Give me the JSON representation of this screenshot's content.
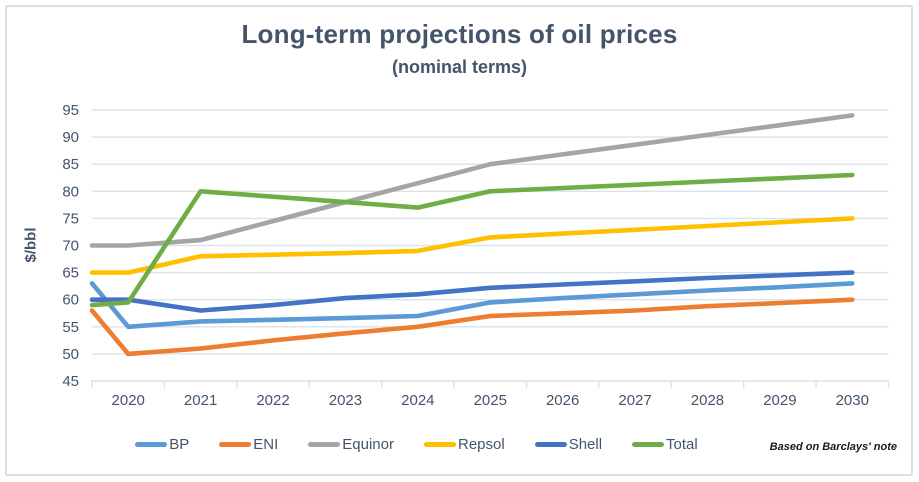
{
  "card": {
    "title": "Long-term projections of oil prices",
    "subtitle": "(nominal terms)",
    "attribution": "Based on Barclays' note"
  },
  "colors": {
    "title_text": "#44546A",
    "axis_text": "#44546A",
    "gridline": "#DCE2EC",
    "frame_border": "#D9DEE8",
    "legend_text": "#44546A"
  },
  "chart_data": {
    "type": "line",
    "title": "Long-term projections of oil prices",
    "subtitle": "(nominal terms)",
    "xlabel": "",
    "ylabel": "$/bbl",
    "ylim": [
      45,
      95
    ],
    "yticks": [
      45,
      50,
      55,
      60,
      65,
      70,
      75,
      80,
      85,
      90,
      95
    ],
    "grid": true,
    "legend_position": "bottom",
    "x": [
      2019,
      2020,
      2021,
      2022,
      2023,
      2024,
      2025,
      2026,
      2027,
      2028,
      2029,
      2030
    ],
    "x_labels_visible": [
      "2020",
      "2021",
      "2022",
      "2023",
      "2024",
      "2025",
      "2026",
      "2027",
      "2028",
      "2029",
      "2030"
    ],
    "layout_note": "first data point (2019) sits at the unlabeled left edge of the axis",
    "series": [
      {
        "name": "BP",
        "color": "#5B9BD5",
        "values": [
          63,
          55,
          56,
          56.3,
          56.6,
          57,
          59.5,
          60.3,
          61,
          61.7,
          62.3,
          63
        ]
      },
      {
        "name": "ENI",
        "color": "#ED7D31",
        "values": [
          58,
          50,
          51,
          52.5,
          53.8,
          55,
          57,
          57.5,
          58,
          58.8,
          59.4,
          60
        ]
      },
      {
        "name": "Equinor",
        "color": "#A5A5A5",
        "values": [
          70,
          70,
          71,
          74.5,
          78,
          81.5,
          85,
          86.8,
          88.6,
          90.4,
          92.2,
          94
        ]
      },
      {
        "name": "Repsol",
        "color": "#FFC000",
        "values": [
          65,
          65,
          68,
          68.3,
          68.6,
          69,
          71.5,
          72.2,
          72.9,
          73.6,
          74.3,
          75
        ]
      },
      {
        "name": "Shell",
        "color": "#4472C4",
        "values": [
          60,
          60,
          58,
          59,
          60.3,
          61,
          62.2,
          62.8,
          63.4,
          64,
          64.5,
          65
        ]
      },
      {
        "name": "Total",
        "color": "#70AD47",
        "values": [
          59,
          59.5,
          80,
          79,
          78,
          77,
          80,
          80.6,
          81.2,
          81.8,
          82.4,
          83
        ]
      }
    ]
  }
}
